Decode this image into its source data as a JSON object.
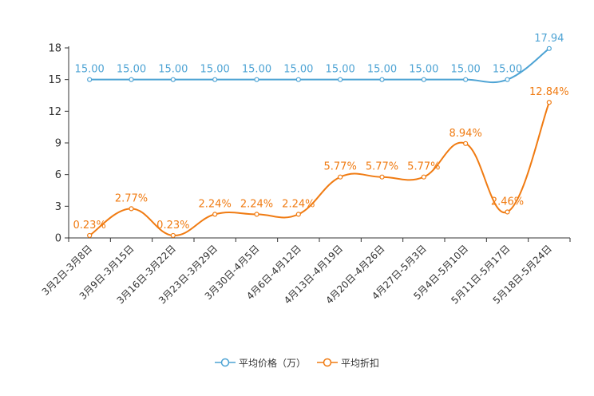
{
  "chart_data": {
    "type": "line",
    "categories": [
      "3月2日-3月8日",
      "3月9日-3月15日",
      "3月16日-3月22日",
      "3月23日-3月29日",
      "3月30日-4月5日",
      "4月6日-4月12日",
      "4月13日-4月19日",
      "4月20日-4月26日",
      "4月27日-5月3日",
      "5月4日-5月10日",
      "5月11日-5月17日",
      "5月18日-5月24日"
    ],
    "series": [
      {
        "name": "平均价格（万）",
        "color": "#4da3d4",
        "values": [
          15.0,
          15.0,
          15.0,
          15.0,
          15.0,
          15.0,
          15.0,
          15.0,
          15.0,
          15.0,
          15.0,
          17.94
        ],
        "labels": [
          "15.00",
          "15.00",
          "15.00",
          "15.00",
          "15.00",
          "15.00",
          "15.00",
          "15.00",
          "15.00",
          "15.00",
          "15.00",
          "17.94"
        ]
      },
      {
        "name": "平均折扣",
        "color": "#f07b12",
        "values": [
          0.23,
          2.77,
          0.23,
          2.24,
          2.24,
          2.24,
          5.77,
          5.77,
          5.77,
          8.94,
          2.46,
          12.84
        ],
        "labels": [
          "0.23%",
          "2.77%",
          "0.23%",
          "2.24%",
          "2.24%",
          "2.24%",
          "5.77%",
          "5.77%",
          "5.77%",
          "8.94%",
          "2.46%",
          "12.84%"
        ]
      }
    ],
    "yticks": [
      "0",
      "3",
      "6",
      "9",
      "12",
      "15",
      "18"
    ],
    "ylim": [
      0,
      18
    ],
    "title": "",
    "xlabel": "",
    "ylabel": ""
  }
}
